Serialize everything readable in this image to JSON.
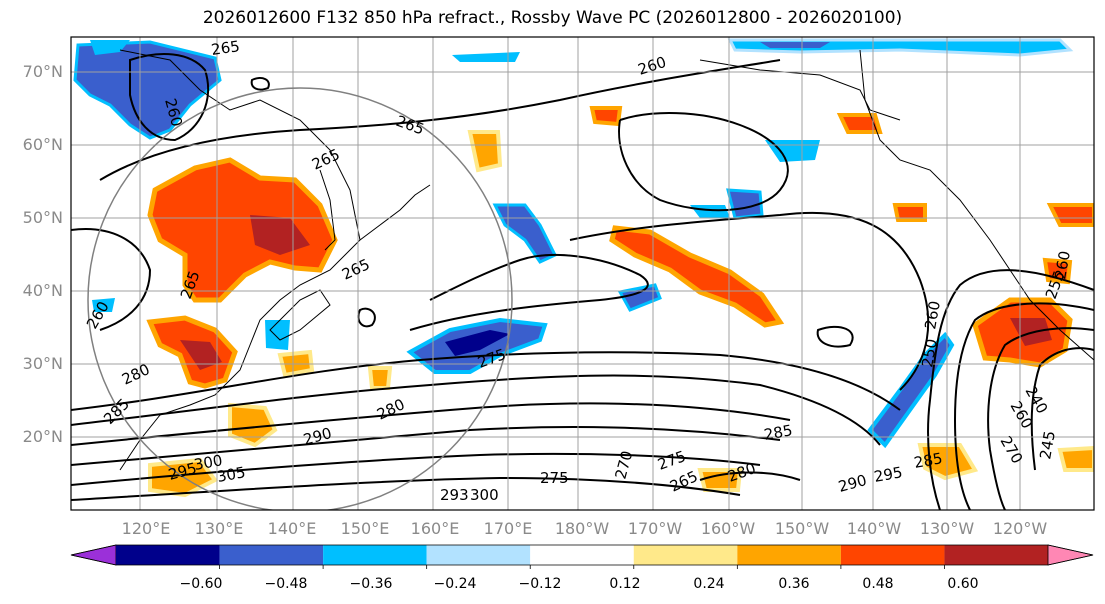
{
  "title": "2026012600 F132 850 hPa refract., Rossby Wave PC (2026012800 - 2026020100)",
  "colors": {
    "coast": "#000000",
    "grid": "#a0a0a0",
    "contour": "#000000",
    "circle": "#808080"
  },
  "axes": {
    "lat_labels": [
      "70°N",
      "60°N",
      "50°N",
      "40°N",
      "30°N",
      "20°N"
    ],
    "lon_labels": [
      "120°E",
      "130°E",
      "140°E",
      "150°E",
      "160°E",
      "170°E",
      "180°W",
      "170°W",
      "160°W",
      "150°W",
      "140°W",
      "130°W",
      "120°W"
    ]
  },
  "colorbar": {
    "levels": [
      "−0.60",
      "−0.48",
      "−0.36",
      "−0.24",
      "−0.12",
      "0.12",
      "0.24",
      "0.36",
      "0.48",
      "0.60"
    ],
    "colors": [
      "#9b30d9",
      "#00008b",
      "#3a5fcd",
      "#00bfff",
      "#b2e2ff",
      "#ffffff",
      "#ffe98a",
      "#ffa500",
      "#ff4500",
      "#b22222",
      "#ff87b4"
    ]
  },
  "contour_labels": [
    "265",
    "260",
    "265",
    "265",
    "260",
    "265",
    "260",
    "265",
    "275",
    "280",
    "280",
    "285",
    "290",
    "295",
    "300",
    "305",
    "293",
    "300",
    "275",
    "275",
    "270",
    "265",
    "280",
    "285",
    "290",
    "295",
    "285",
    "270",
    "260",
    "250",
    "240",
    "245",
    "255",
    "260",
    "260"
  ]
}
